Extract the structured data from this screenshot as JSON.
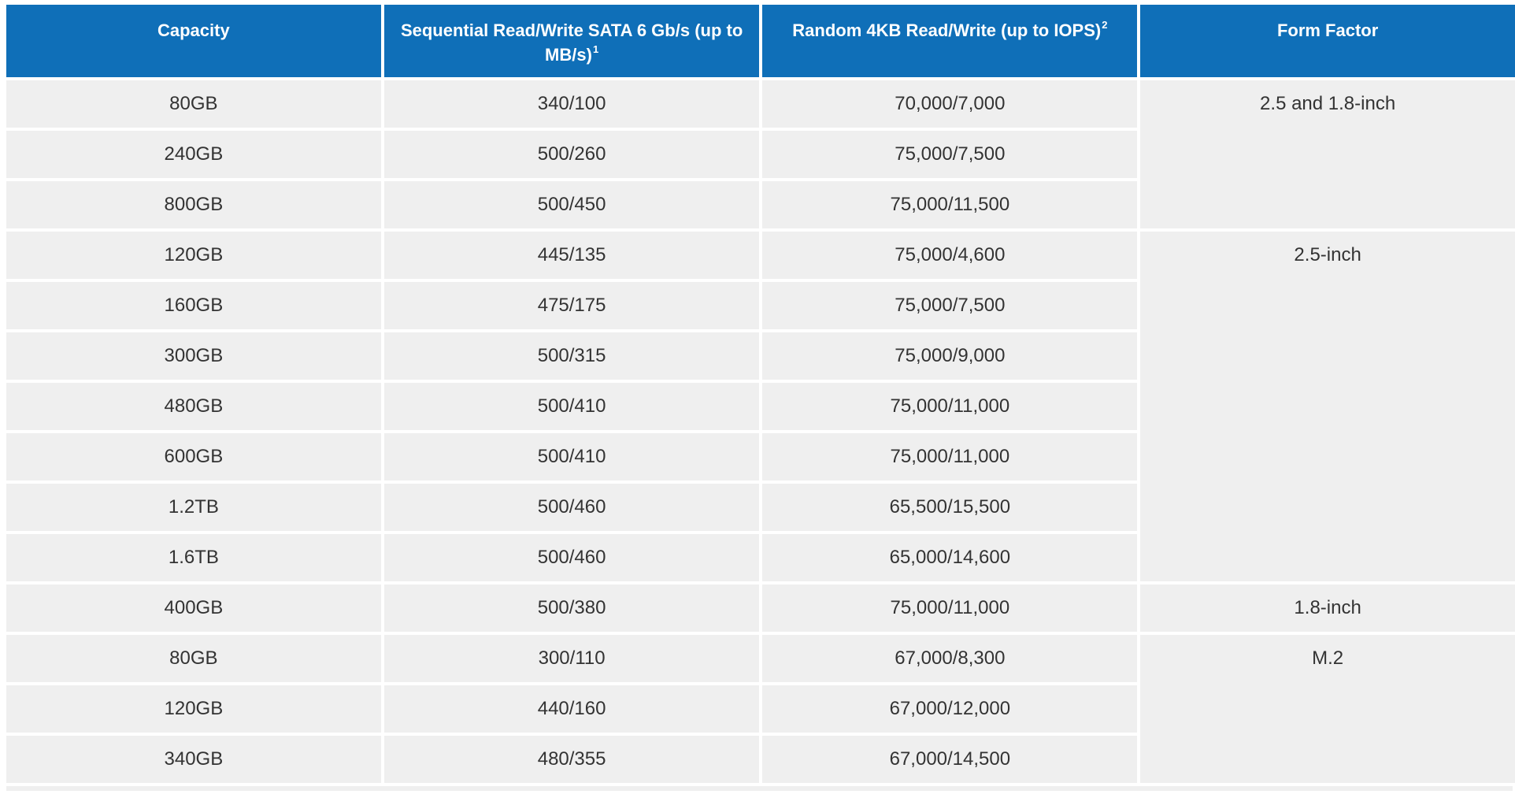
{
  "table": {
    "headers": [
      {
        "label": "Capacity",
        "sup": ""
      },
      {
        "label": "Sequential Read/Write SATA 6 Gb/s (up to MB/s)",
        "sup": "1"
      },
      {
        "label": "Random 4KB Read/Write (up to IOPS)",
        "sup": "2"
      },
      {
        "label": "Form Factor",
        "sup": ""
      }
    ],
    "rows": [
      {
        "capacity": "80GB",
        "sequential": "340/100",
        "random": "70,000/7,000"
      },
      {
        "capacity": "240GB",
        "sequential": "500/260",
        "random": "75,000/7,500"
      },
      {
        "capacity": "800GB",
        "sequential": "500/450",
        "random": "75,000/11,500"
      },
      {
        "capacity": "120GB",
        "sequential": "445/135",
        "random": "75,000/4,600"
      },
      {
        "capacity": "160GB",
        "sequential": "475/175",
        "random": "75,000/7,500"
      },
      {
        "capacity": "300GB",
        "sequential": "500/315",
        "random": "75,000/9,000"
      },
      {
        "capacity": "480GB",
        "sequential": "500/410",
        "random": "75,000/11,000"
      },
      {
        "capacity": "600GB",
        "sequential": "500/410",
        "random": "75,000/11,000"
      },
      {
        "capacity": "1.2TB",
        "sequential": "500/460",
        "random": "65,500/15,500"
      },
      {
        "capacity": "1.6TB",
        "sequential": "500/460",
        "random": "65,000/14,600"
      },
      {
        "capacity": "400GB",
        "sequential": "500/380",
        "random": "75,000/11,000"
      },
      {
        "capacity": "80GB",
        "sequential": "300/110",
        "random": "67,000/8,300"
      },
      {
        "capacity": "120GB",
        "sequential": "440/160",
        "random": "67,000/12,000"
      },
      {
        "capacity": "340GB",
        "sequential": "480/355",
        "random": "67,000/14,500"
      }
    ],
    "form_factors": [
      {
        "label": "2.5 and 1.8-inch",
        "rowspan": 3
      },
      {
        "label": "2.5-inch",
        "rowspan": 7
      },
      {
        "label": "1.8-inch",
        "rowspan": 1
      },
      {
        "label": "M.2",
        "rowspan": 3
      }
    ],
    "colors": {
      "header_bg": "#0f6fb8",
      "header_text": "#ffffff",
      "cell_bg": "#efefef",
      "cell_text": "#333333"
    }
  }
}
